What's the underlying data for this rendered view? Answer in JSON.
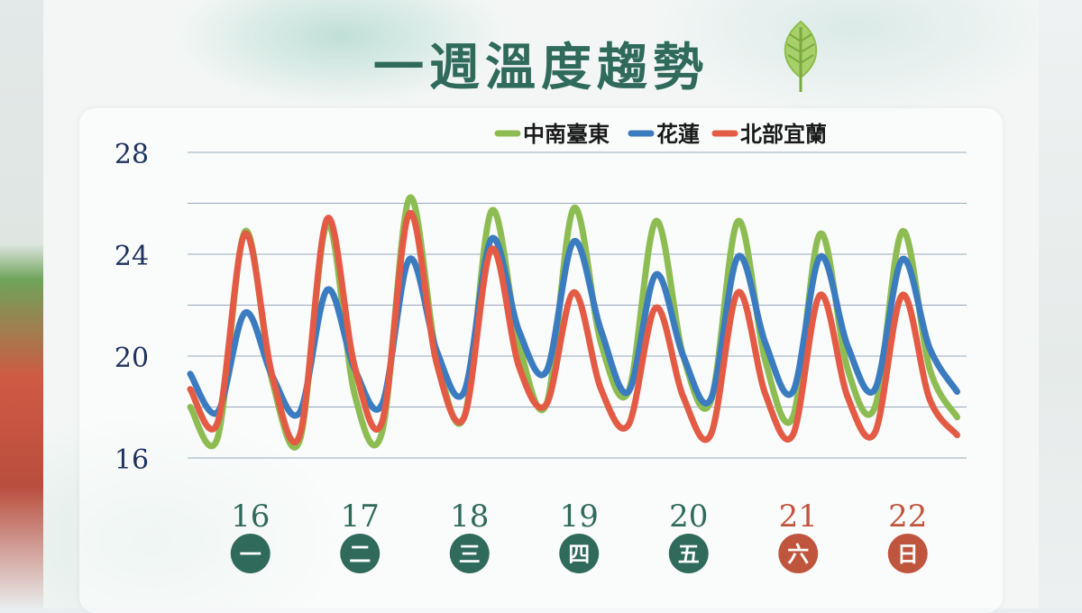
{
  "title": "一週溫度趨勢",
  "colors": {
    "green": "#8dbd52",
    "blue": "#3b7bbf",
    "red": "#e35b44",
    "weekday_badge": "#2f6a5b",
    "weekend_badge": "#c0553e",
    "axis_text": "#1f3360"
  },
  "chart_data": {
    "type": "line",
    "title": "一週溫度趨勢",
    "ylim": [
      16,
      28
    ],
    "yticks": [
      16,
      20,
      24,
      28
    ],
    "grid": true,
    "legend_position": "top-right",
    "days": [
      {
        "date": "16",
        "weekday": "一",
        "weekend": false
      },
      {
        "date": "17",
        "weekday": "二",
        "weekend": false
      },
      {
        "date": "18",
        "weekday": "三",
        "weekend": false
      },
      {
        "date": "19",
        "weekday": "四",
        "weekend": false
      },
      {
        "date": "20",
        "weekday": "五",
        "weekend": false
      },
      {
        "date": "21",
        "weekday": "六",
        "weekend": true
      },
      {
        "date": "22",
        "weekday": "日",
        "weekend": true
      }
    ],
    "x": [
      0,
      0.25,
      0.5,
      0.75,
      1,
      1.25,
      1.5,
      1.75,
      2,
      2.25,
      2.5,
      2.75,
      3,
      3.25,
      3.5,
      3.75,
      4,
      4.25,
      4.5,
      4.75,
      5,
      5.25,
      5.5,
      5.75,
      6,
      6.25,
      6.5,
      6.75,
      7
    ],
    "series": [
      {
        "name": "中南臺東",
        "color": "#8dbd52",
        "values": [
          18.0,
          16.8,
          24.9,
          19.0,
          16.7,
          25.2,
          18.5,
          17.0,
          26.2,
          20.0,
          17.6,
          25.7,
          20.5,
          18.1,
          25.8,
          20.5,
          18.6,
          25.3,
          20.0,
          18.2,
          25.3,
          19.8,
          17.6,
          24.8,
          19.5,
          18.0,
          24.9,
          19.5,
          17.6
        ]
      },
      {
        "name": "花蓮",
        "color": "#3b7bbf",
        "values": [
          19.3,
          17.8,
          21.7,
          19.2,
          17.8,
          22.6,
          19.5,
          18.1,
          23.8,
          20.2,
          18.6,
          24.6,
          21.0,
          19.4,
          24.5,
          21.0,
          18.6,
          23.2,
          20.0,
          18.3,
          23.9,
          20.5,
          18.6,
          23.9,
          20.4,
          18.7,
          23.8,
          20.3,
          18.6
        ]
      },
      {
        "name": "北部宜蘭",
        "color": "#e35b44",
        "values": [
          18.7,
          17.4,
          24.8,
          19.2,
          16.9,
          25.4,
          19.6,
          17.4,
          25.6,
          19.7,
          17.6,
          24.2,
          19.6,
          18.1,
          22.5,
          18.7,
          17.3,
          21.9,
          18.4,
          16.9,
          22.5,
          18.5,
          16.9,
          22.4,
          18.4,
          17.0,
          22.4,
          18.3,
          16.9
        ]
      }
    ]
  }
}
